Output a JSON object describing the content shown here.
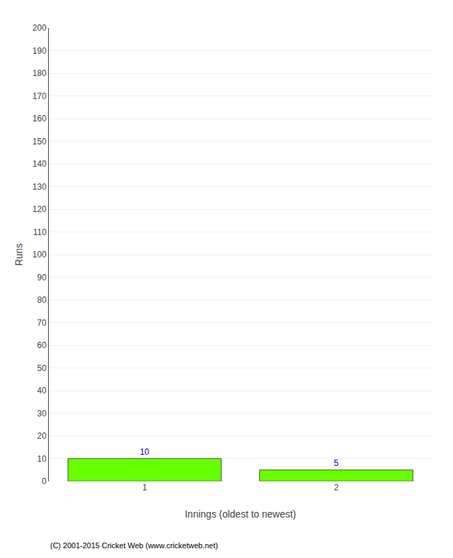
{
  "chart_data": {
    "type": "bar",
    "categories": [
      "1",
      "2"
    ],
    "values": [
      10,
      5
    ],
    "color": "#66ff00",
    "xlabel": "Innings (oldest to newest)",
    "ylabel": "Runs",
    "ylim": [
      0,
      200
    ],
    "yticks": [
      0,
      10,
      20,
      30,
      40,
      50,
      60,
      70,
      80,
      90,
      100,
      110,
      120,
      130,
      140,
      150,
      160,
      170,
      180,
      190,
      200
    ],
    "grid": true,
    "data_labels": true,
    "annotations": [
      "(C) 2001-2015 Cricket Web (www.cricketweb.net)"
    ]
  }
}
